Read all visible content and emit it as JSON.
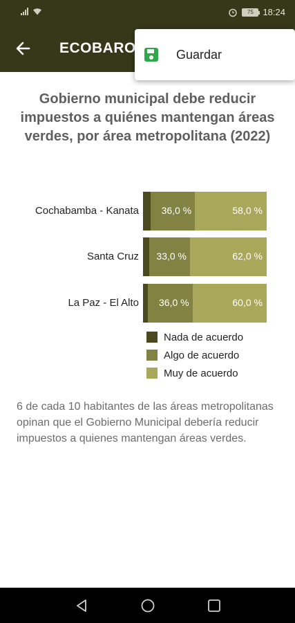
{
  "status": {
    "time": "18:24",
    "battery": "75",
    "icons": [
      "signal-icon",
      "wifi-icon",
      "alarm-icon",
      "battery-icon"
    ]
  },
  "app_bar": {
    "title": "ECOBAROMETRO",
    "back_icon": "arrow-left-icon"
  },
  "menu": {
    "items": [
      {
        "label": "Guardar",
        "icon": "save-icon",
        "icon_color": "#2ea84a"
      }
    ]
  },
  "colors": {
    "header_bg": "#37371a",
    "nada": "#4a4a1e",
    "algo": "#828243",
    "muy": "#a9a85a"
  },
  "chart_data": {
    "type": "bar",
    "orientation": "horizontal",
    "stacked": true,
    "title": "Gobierno municipal debe reducir impuestos a quiénes mantengan áreas verdes, por área metropolitana (2022)",
    "categories": [
      "Cochabamba - Kanata",
      "Santa Cruz",
      "La Paz - El Alto"
    ],
    "series": [
      {
        "name": "Nada de acuerdo",
        "values": [
          6.0,
          5.0,
          4.0
        ],
        "labels": [
          "",
          "",
          ""
        ]
      },
      {
        "name": "Algo de acuerdo",
        "values": [
          36.0,
          33.0,
          36.0
        ],
        "labels": [
          "36,0 %",
          "33,0 %",
          "36,0 %"
        ]
      },
      {
        "name": "Muy de acuerdo",
        "values": [
          58.0,
          62.0,
          60.0
        ],
        "labels": [
          "58,0 %",
          "62,0 %",
          "60,0 %"
        ]
      }
    ],
    "xlim": [
      0,
      100
    ],
    "grid": false,
    "legend_position": "bottom-right"
  },
  "summary": "6 de cada 10 habitantes de las áreas metropolitanas opinan que el Gobierno Municipal debería reducir impuestos a quienes mantengan áreas verdes.",
  "nav": {
    "buttons": [
      "back-triangle-icon",
      "home-circle-icon",
      "recents-square-icon"
    ]
  }
}
